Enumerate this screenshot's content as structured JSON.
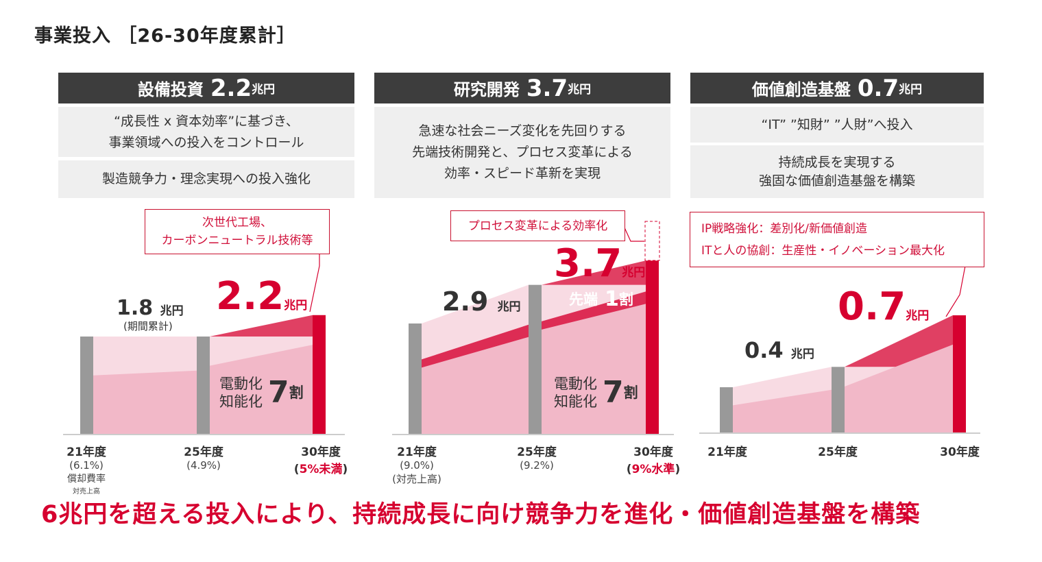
{
  "title": "事業投入 ［26-30年度累計］",
  "colors": {
    "accent": "#d6002f",
    "header_bg": "#3d3d3d",
    "box_bg": "#efefef",
    "bar_gray": "#999999",
    "area_pink": "#f2b8c8",
    "area_light": "#f8dbe3"
  },
  "panels": [
    {
      "title": "設備投資",
      "amount": "2.2",
      "unit": "兆円",
      "boxes": [
        "“成長性 x 資本効率”に基づき、\n事業領域への投入をコントロール",
        "製造競争力・理念実現への投入強化"
      ],
      "callout": "次世代工場、\nカーボンニュートラル技術等",
      "prev_value": "1.8",
      "prev_unit": "兆円",
      "prev_note": "(期間累計)",
      "value": "2.2",
      "value_unit": "兆円",
      "share_label": "電動化\n知能化",
      "share_num": "7",
      "share_unit": "割",
      "x": [
        {
          "label": "21年度",
          "sub": "(6.1%)",
          "note": "償却費率",
          "note2": "対売上高"
        },
        {
          "label": "25年度",
          "sub": "(4.9%)"
        },
        {
          "label": "30年度",
          "sub_open": "(",
          "sub_red": "5%未満",
          "sub_close": ")"
        }
      ]
    },
    {
      "title": "研究開発",
      "amount": "3.7",
      "unit": "兆円",
      "boxes": [
        "急速な社会ニーズ変化を先回りする\n先端技術開発と、プロセス変革による\n効率・スピード革新を実現"
      ],
      "callout": "プロセス変革による効率化",
      "prev_value": "2.9",
      "prev_unit": "兆円",
      "value": "3.7",
      "value_unit": "兆円",
      "share2_label": "先端",
      "share2_num": "1",
      "share2_unit": "割",
      "share_label": "電動化\n知能化",
      "share_num": "7",
      "share_unit": "割",
      "x": [
        {
          "label": "21年度",
          "sub": "(9.0%)",
          "note": "(対売上高)"
        },
        {
          "label": "25年度",
          "sub": "(9.2%)"
        },
        {
          "label": "30年度",
          "sub_open": "(",
          "sub_red": "9%水準",
          "sub_close": ")"
        }
      ]
    },
    {
      "title": "価値創造基盤",
      "amount": "0.7",
      "unit": "兆円",
      "boxes": [
        "“IT” ”知財” ”人財”へ投入",
        "持続成長を実現する\n強固な価値創造基盤を構築"
      ],
      "callout": "IP戦略強化：差別化/新価値創造\nITと人の協創：生産性・イノベーション最大化",
      "prev_value": "0.4",
      "prev_unit": "兆円",
      "value": "0.7",
      "value_unit": "兆円",
      "x": [
        {
          "label": "21年度"
        },
        {
          "label": "25年度"
        },
        {
          "label": "30年度"
        }
      ]
    }
  ],
  "chart_data": [
    {
      "type": "bar",
      "categories": [
        "21年度",
        "25年度",
        "30年度"
      ],
      "relative_levels": [
        100,
        100,
        122
      ],
      "period_totals": [
        {
          "period": "21-25年度",
          "value": 1.8
        },
        {
          "period": "26-30年度",
          "value": 2.2
        }
      ],
      "unit": "兆円"
    },
    {
      "type": "bar",
      "categories": [
        "21年度",
        "25年度",
        "30年度"
      ],
      "relative_levels": [
        100,
        135,
        157
      ],
      "period_totals": [
        {
          "period": "21-25年度",
          "value": 2.9
        },
        {
          "period": "26-30年度",
          "value": 3.7
        }
      ],
      "unit": "兆円"
    },
    {
      "type": "bar",
      "categories": [
        "21年度",
        "25年度",
        "30年度"
      ],
      "relative_levels": [
        100,
        145,
        259
      ],
      "period_totals": [
        {
          "period": "21-25年度",
          "value": 0.4
        },
        {
          "period": "26-30年度",
          "value": 0.7
        }
      ],
      "unit": "兆円"
    }
  ],
  "footer": "6兆円を超える投入により、持続成長に向け競争力を進化・価値創造基盤を構築"
}
